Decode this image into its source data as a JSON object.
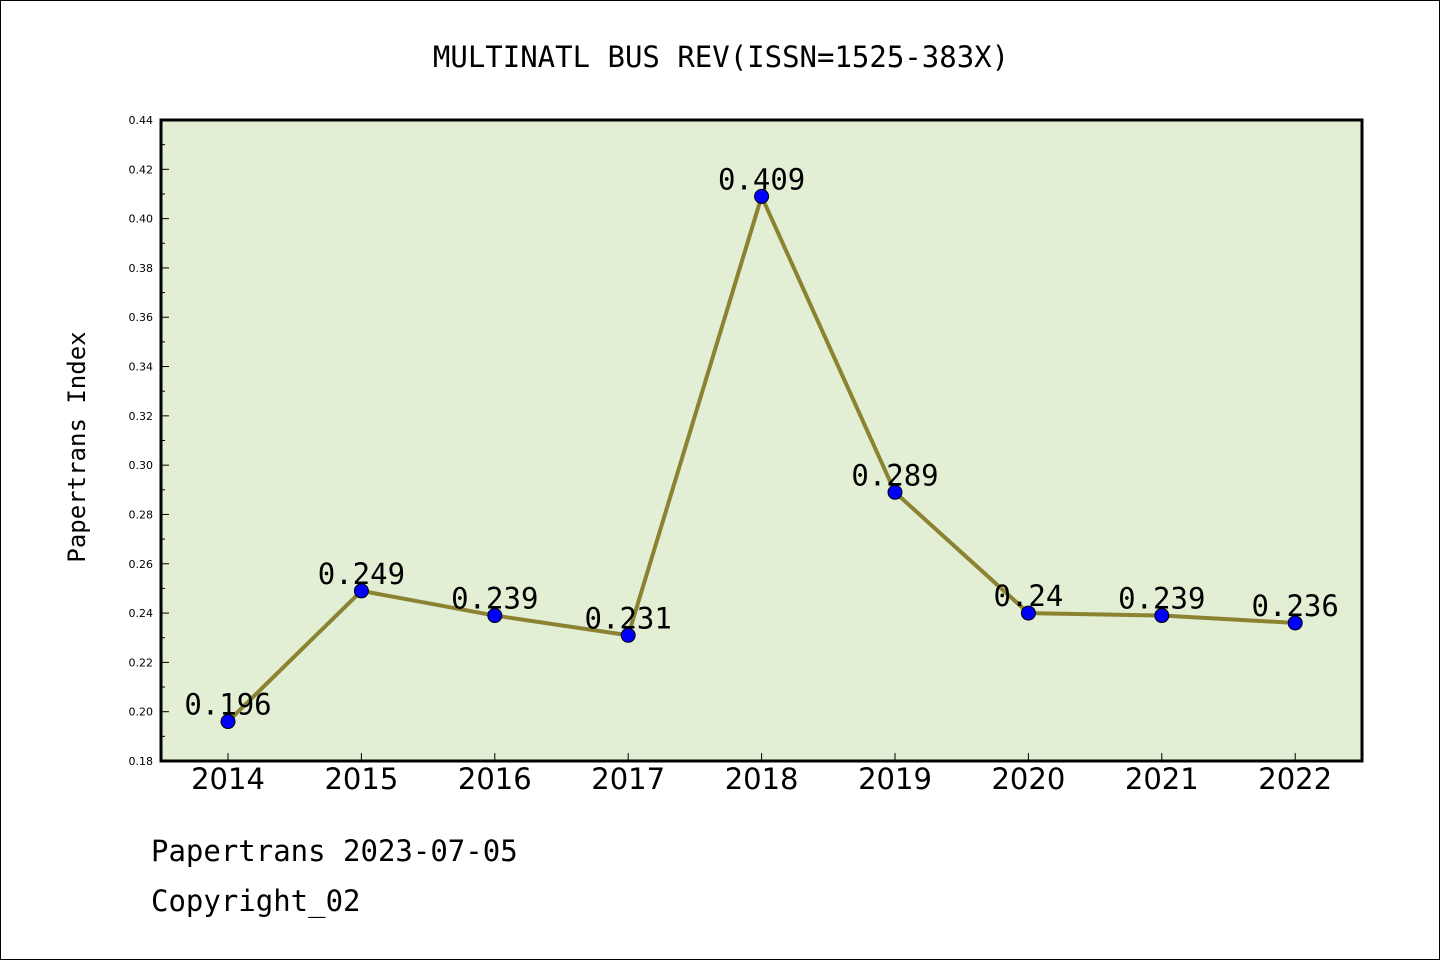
{
  "chart_data": {
    "type": "line",
    "title": "MULTINATL BUS REV(ISSN=1525-383X)",
    "xlabel": "",
    "ylabel": "Papertrans Index",
    "categories": [
      "2014",
      "2015",
      "2016",
      "2017",
      "2018",
      "2019",
      "2020",
      "2021",
      "2022"
    ],
    "values": [
      0.196,
      0.249,
      0.239,
      0.231,
      0.409,
      0.289,
      0.24,
      0.239,
      0.236
    ],
    "data_labels": [
      "0.196",
      "0.249",
      "0.239",
      "0.231",
      "0.409",
      "0.289",
      "0.24",
      "0.239",
      "0.236"
    ],
    "ylim": [
      0.18,
      0.44
    ],
    "yticks": [
      "0.18",
      "0.20",
      "0.22",
      "0.24",
      "0.26",
      "0.28",
      "0.30",
      "0.32",
      "0.34",
      "0.36",
      "0.38",
      "0.40",
      "0.42",
      "0.44"
    ],
    "grid": false,
    "line_color": "#8b8232",
    "marker_color": "#0000ff",
    "plot_background": "#e2efd5"
  },
  "footer": {
    "line1": "Papertrans 2023-07-05",
    "line2": "Copyright_02"
  }
}
